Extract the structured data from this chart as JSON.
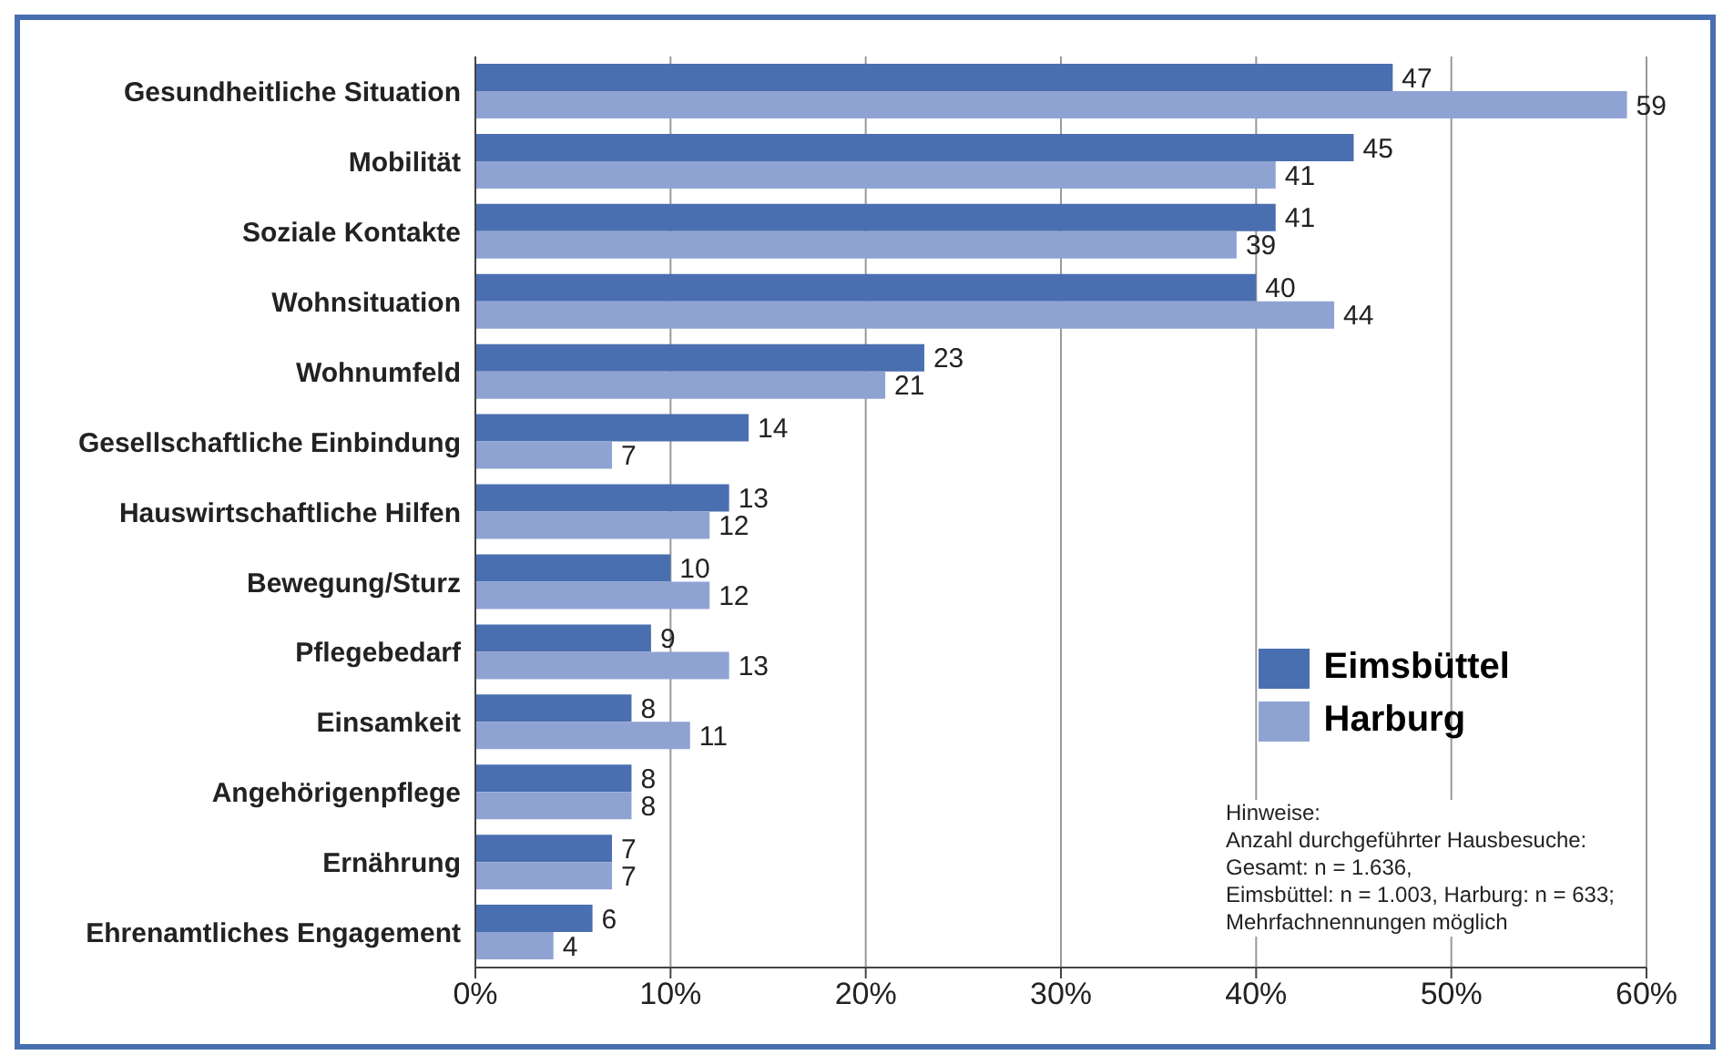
{
  "chart_data": {
    "type": "bar",
    "orientation": "horizontal",
    "categories": [
      "Gesundheitliche Situation",
      "Mobilität",
      "Soziale Kontakte",
      "Wohnsituation",
      "Wohnumfeld",
      "Gesellschaftliche Einbindung",
      "Hauswirtschaftliche Hilfen",
      "Bewegung/Sturz",
      "Pflegebedarf",
      "Einsamkeit",
      "Angehörigenpflege",
      "Ernährung",
      "Ehrenamtliches Engagement"
    ],
    "series": [
      {
        "name": "Eimsbüttel",
        "color": "#4a6fb0",
        "values": [
          47,
          45,
          41,
          40,
          23,
          14,
          13,
          10,
          9,
          8,
          8,
          7,
          6
        ]
      },
      {
        "name": "Harburg",
        "color": "#8fa3d3",
        "values": [
          59,
          41,
          39,
          44,
          21,
          7,
          12,
          12,
          13,
          11,
          8,
          7,
          4
        ]
      }
    ],
    "xlim": [
      0,
      60
    ],
    "xticks": [
      {
        "value": 0,
        "label": "0%"
      },
      {
        "value": 10,
        "label": "10%"
      },
      {
        "value": 20,
        "label": "20%"
      },
      {
        "value": 30,
        "label": "30%"
      },
      {
        "value": 40,
        "label": "40%"
      },
      {
        "value": 50,
        "label": "50%"
      },
      {
        "value": 60,
        "label": "60%"
      }
    ],
    "grid": "x",
    "legend": "bottom right",
    "data_labels": true,
    "annotations": [
      "Hinweise:",
      "Anzahl durchgeführter Hausbesuche:",
      "Gesamt: n = 1.636,",
      "Eimsbüttel: n = 1.003, Harburg: n = 633;",
      "Mehrfachnennungen möglich"
    ]
  }
}
